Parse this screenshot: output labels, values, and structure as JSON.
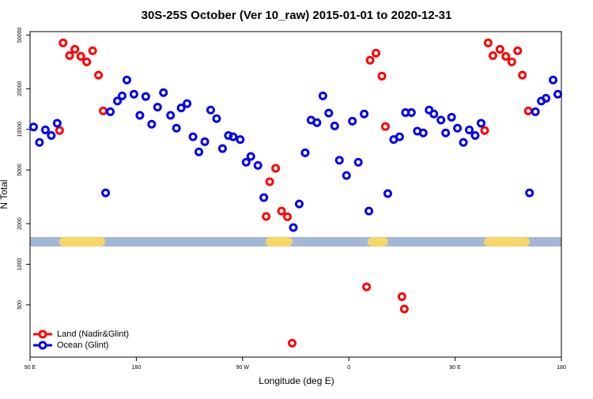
{
  "chart_data": {
    "type": "scatter",
    "title": "30S-25S October (Ver 10_raw)   2015-01-01 to 2020-12-31",
    "x_label": "Longitude (deg E)",
    "y_label": "N Total",
    "y_scale": "log",
    "legend": "bottomleft",
    "xlim": [
      90,
      540
    ],
    "xticks": [
      {
        "value": 90,
        "label": "90 E"
      },
      {
        "value": 180,
        "label": "180"
      },
      {
        "value": 270,
        "label": "90 W"
      },
      {
        "value": 360,
        "label": "0"
      },
      {
        "value": 450,
        "label": "90 E"
      },
      {
        "value": 540,
        "label": "180"
      }
    ],
    "ylim": [
      205,
      53000
    ],
    "yticks": [
      500,
      1000,
      2000,
      5000,
      10000,
      20000,
      50000
    ],
    "series": [
      {
        "name": "Land (Nadir&Glint)",
        "color": "#ff0000",
        "x": [
          118,
          123.5,
          128,
          133,
          138,
          143,
          148,
          152,
          115,
          290,
          293,
          298,
          303,
          308,
          312,
          375,
          378,
          383,
          388,
          391,
          405,
          407,
          475,
          478,
          482,
          488,
          493,
          498,
          503,
          507,
          512
        ],
        "values": [
          43700,
          35200,
          39200,
          34700,
          31600,
          38200,
          25200,
          13700,
          9800,
          2260,
          4090,
          5140,
          2480,
          2250,
          260,
          680,
          32500,
          36700,
          24800,
          10500,
          575,
          466,
          9800,
          43700,
          35200,
          39200,
          34700,
          31600,
          38200,
          25200,
          13700
        ]
      },
      {
        "name": "Ocean (Glint)",
        "color": "#0000ee",
        "x": [
          93,
          98,
          103,
          108,
          113,
          154,
          158,
          164,
          168,
          172,
          178,
          183,
          188,
          193,
          198,
          203,
          209,
          214,
          218,
          223,
          228,
          233,
          238,
          243,
          248,
          253,
          258,
          262,
          268,
          273,
          277,
          283,
          288,
          313,
          318,
          323,
          328,
          333,
          338,
          343,
          348,
          352,
          358,
          363,
          368,
          373,
          377,
          393,
          398,
          403,
          408,
          413,
          418,
          423,
          428,
          432,
          438,
          442,
          447,
          452,
          457,
          462,
          467,
          472,
          513,
          518,
          523,
          527,
          533,
          537
        ],
        "values": [
          10400,
          8000,
          9900,
          9000,
          11100,
          3380,
          13500,
          16200,
          17700,
          23200,
          18200,
          12700,
          17500,
          10900,
          14600,
          18700,
          12700,
          10200,
          14400,
          15500,
          8800,
          6800,
          8100,
          13900,
          12000,
          7200,
          9000,
          8800,
          8400,
          5700,
          6300,
          5400,
          3120,
          1870,
          2800,
          6700,
          11700,
          11200,
          17700,
          13200,
          10600,
          5900,
          4550,
          11500,
          5700,
          13000,
          2480,
          3340,
          8400,
          8800,
          13300,
          13300,
          9700,
          9400,
          13900,
          13000,
          11700,
          9400,
          12300,
          10200,
          8000,
          9900,
          9000,
          11100,
          3380,
          13500,
          16200,
          17000,
          23200,
          18200
        ]
      }
    ]
  }
}
